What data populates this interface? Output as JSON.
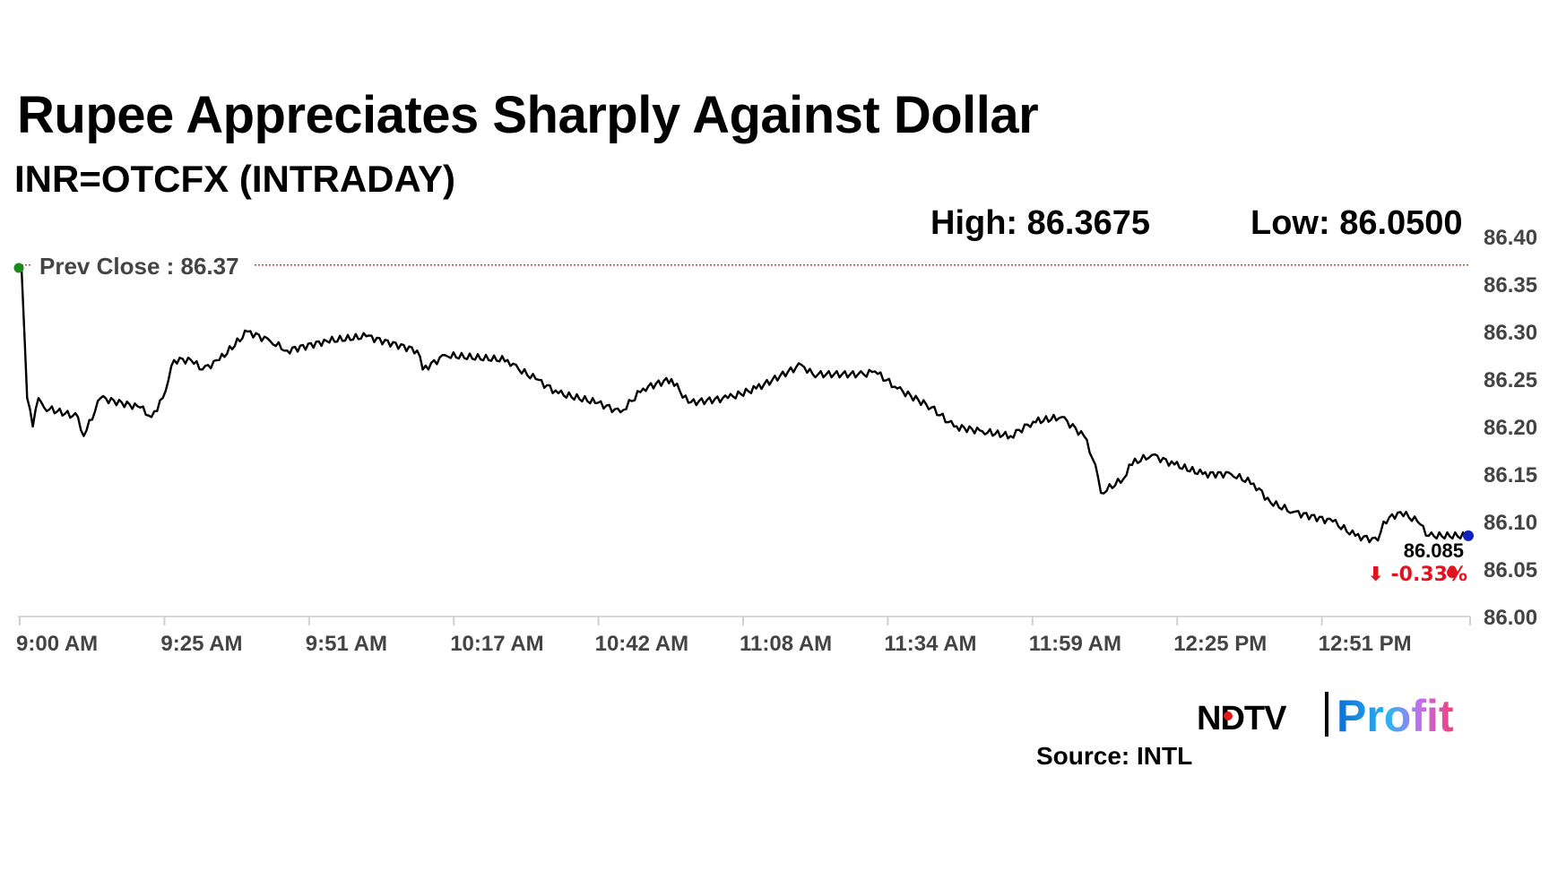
{
  "header": {
    "title": "Rupee Appreciates Sharply Against Dollar",
    "subtitle": "INR=OTCFX (INTRADAY)",
    "high": "High: 86.3675",
    "low": "Low: 86.0500"
  },
  "footer": {
    "source": "Source: INTL",
    "logo_text": "NDTV Profit"
  },
  "chart_data": {
    "type": "line",
    "title": "",
    "xlabel": "",
    "ylabel": "",
    "xlim": [
      "9:00",
      "13:16"
    ],
    "ylim": [
      86.0,
      86.4
    ],
    "yticks": [
      "86.00",
      "86.05",
      "86.10",
      "86.15",
      "86.20",
      "86.25",
      "86.30",
      "86.35",
      "86.40"
    ],
    "xticks": [
      "9:00 AM",
      "9:25 AM",
      "9:51 AM",
      "10:17 AM",
      "10:42 AM",
      "11:08 AM",
      "11:34 AM",
      "11:59 AM",
      "12:25 PM",
      "12:51 PM"
    ],
    "grid": false,
    "prev_close": {
      "label": "Prev Close : 86.37",
      "value": 86.37
    },
    "last": {
      "value_label": "86.085",
      "change_label": "⬇ -0.33%"
    },
    "colors": {
      "line": "#000000",
      "prev_close_line": "#d9352b",
      "start_dot": "#1a8a1a",
      "end_dot": "#1020c0",
      "change": "#e0141e",
      "axis_text": "#444444"
    },
    "series": [
      {
        "x": [
          "9:00",
          "9:01",
          "9:02",
          "9:03",
          "9:04",
          "9:10",
          "9:11",
          "9:14",
          "9:21",
          "9:23",
          "9:25",
          "9:27",
          "9:30",
          "9:32",
          "9:35",
          "9:40",
          "9:44",
          "9:47",
          "9:54",
          "10:01",
          "10:10",
          "10:11",
          "10:15",
          "10:26",
          "10:28",
          "10:31",
          "10:35",
          "10:42",
          "10:46",
          "10:50",
          "10:55",
          "10:58",
          "11:05",
          "11:10",
          "11:18",
          "11:20",
          "11:29",
          "11:31",
          "11:35",
          "11:41",
          "11:45",
          "11:50",
          "11:55",
          "11:59",
          "12:04",
          "12:08",
          "12:10",
          "12:11",
          "12:15",
          "12:16",
          "12:20",
          "12:24",
          "12:29",
          "12:34",
          "12:38",
          "12:41",
          "12:45",
          "12:52",
          "12:56",
          "13:00",
          "13:01",
          "13:04",
          "13:07",
          "13:09",
          "13:16"
        ],
        "values": [
          86.367,
          86.23,
          86.2,
          86.23,
          86.22,
          86.21,
          86.19,
          86.23,
          86.22,
          86.21,
          86.23,
          86.27,
          86.27,
          86.26,
          86.27,
          86.3,
          86.29,
          86.28,
          86.29,
          86.295,
          86.28,
          86.26,
          86.275,
          86.27,
          86.26,
          86.25,
          86.235,
          86.225,
          86.215,
          86.24,
          86.25,
          86.225,
          86.23,
          86.24,
          86.265,
          86.255,
          86.255,
          86.258,
          86.24,
          86.22,
          86.2,
          86.195,
          86.19,
          86.205,
          86.21,
          86.19,
          86.16,
          86.13,
          86.145,
          86.16,
          86.17,
          86.16,
          86.15,
          86.15,
          86.14,
          86.12,
          86.11,
          86.1,
          86.085,
          86.08,
          86.1,
          86.11,
          86.1,
          86.085,
          86.085
        ]
      }
    ]
  }
}
